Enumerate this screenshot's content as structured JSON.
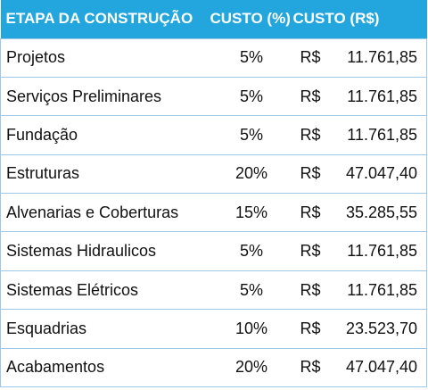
{
  "table": {
    "headers": {
      "etapa": "ETAPA DA CONSTRUÇÃO",
      "pct": "CUSTO (%)",
      "valor": "CUSTO (R$)"
    },
    "rows": [
      {
        "etapa": "Projetos",
        "pct": "5%",
        "currency": "R$",
        "valor": "11.761,85"
      },
      {
        "etapa": "Serviços Preliminares",
        "pct": "5%",
        "currency": "R$",
        "valor": "11.761,85"
      },
      {
        "etapa": "Fundação",
        "pct": "5%",
        "currency": "R$",
        "valor": "11.761,85"
      },
      {
        "etapa": "Estruturas",
        "pct": "20%",
        "currency": "R$",
        "valor": "47.047,40"
      },
      {
        "etapa": "Alvenarias e Coberturas",
        "pct": "15%",
        "currency": "R$",
        "valor": "35.285,55"
      },
      {
        "etapa": "Sistemas Hidraulicos",
        "pct": "5%",
        "currency": "R$",
        "valor": "11.761,85"
      },
      {
        "etapa": "Sistemas Elétricos",
        "pct": "5%",
        "currency": "R$",
        "valor": "11.761,85"
      },
      {
        "etapa": "Esquadrias",
        "pct": "10%",
        "currency": "R$",
        "valor": "23.523,70"
      },
      {
        "etapa": "Acabamentos",
        "pct": "20%",
        "currency": "R$",
        "valor": "47.047,40"
      }
    ]
  },
  "colors": {
    "header_bg": "#22a6dd",
    "header_text": "#ffffff",
    "border": "#9ec8e6"
  }
}
